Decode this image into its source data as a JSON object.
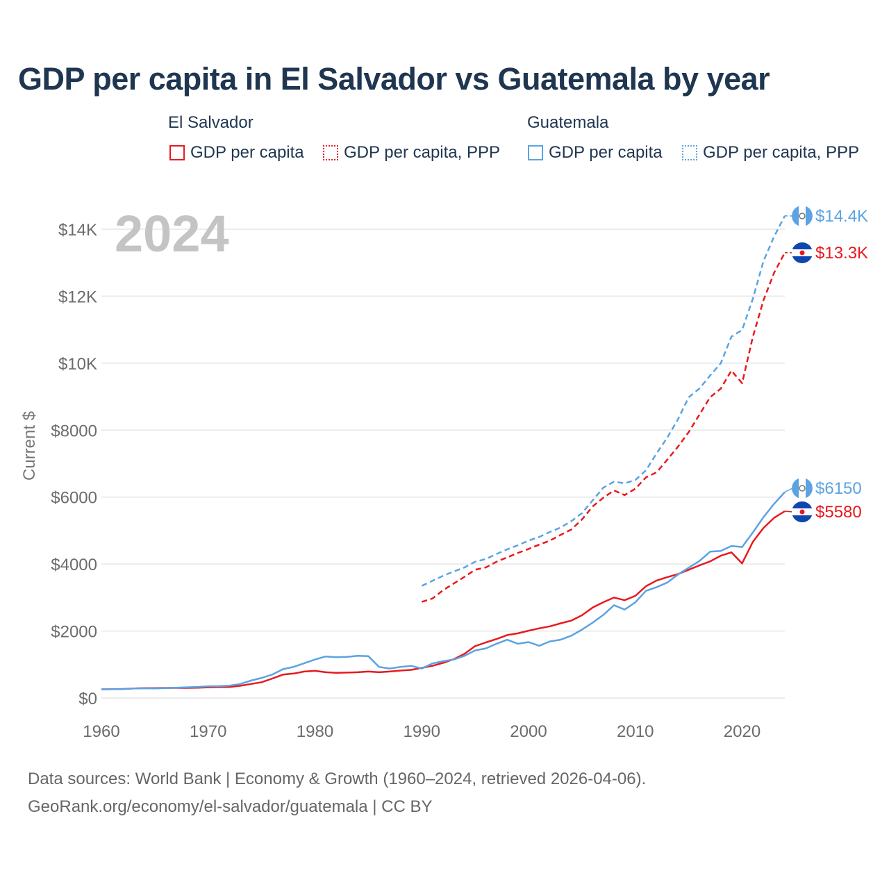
{
  "title": "GDP per capita in El Salvador vs Guatemala by year",
  "legend": {
    "groups": [
      {
        "name": "El Salvador",
        "items": [
          "GDP per capita",
          "GDP per capita, PPP"
        ]
      },
      {
        "name": "Guatemala",
        "items": [
          "GDP per capita",
          "GDP per capita, PPP"
        ]
      }
    ]
  },
  "colors": {
    "el_salvador": "#e8191e",
    "guatemala": "#5ba3e2"
  },
  "source": {
    "line1": "Data sources: World Bank | Economy & Growth (1960–2024, retrieved 2026-04-06).",
    "line2": "GeoRank.org/economy/el-salvador/guatemala | CC BY"
  },
  "chart_data": {
    "type": "line",
    "title": "GDP per capita in El Salvador vs Guatemala by year",
    "year_label": "2024",
    "ylabel": "Current $",
    "xlabel": "",
    "xlim": [
      1960,
      2024
    ],
    "ylim": [
      0,
      14000
    ],
    "xticks": [
      1960,
      1970,
      1980,
      1990,
      2000,
      2010,
      2020
    ],
    "yticks": [
      0,
      2000,
      4000,
      6000,
      8000,
      10000,
      12000,
      14000
    ],
    "ytick_labels": [
      "$0",
      "$2000",
      "$4000",
      "$6000",
      "$8000",
      "$10K",
      "$12K",
      "$14K"
    ],
    "grid": true,
    "series": [
      {
        "name": "El Salvador GDP per capita",
        "country": "El Salvador",
        "style": "solid",
        "color": "#e8191e",
        "end_label": "$5580",
        "x": [
          1960,
          1961,
          1962,
          1963,
          1964,
          1965,
          1966,
          1967,
          1968,
          1969,
          1970,
          1971,
          1972,
          1973,
          1974,
          1975,
          1976,
          1977,
          1978,
          1979,
          1980,
          1981,
          1982,
          1983,
          1984,
          1985,
          1986,
          1987,
          1988,
          1989,
          1990,
          1991,
          1992,
          1993,
          1994,
          1995,
          1996,
          1997,
          1998,
          1999,
          2000,
          2001,
          2002,
          2003,
          2004,
          2005,
          2006,
          2007,
          2008,
          2009,
          2010,
          2011,
          2012,
          2013,
          2014,
          2015,
          2016,
          2017,
          2018,
          2019,
          2020,
          2021,
          2022,
          2023,
          2024
        ],
        "values": [
          260,
          265,
          270,
          285,
          295,
          295,
          300,
          300,
          300,
          305,
          320,
          325,
          330,
          365,
          420,
          470,
          580,
          700,
          730,
          790,
          810,
          770,
          750,
          760,
          770,
          790,
          770,
          790,
          820,
          840,
          900,
          960,
          1050,
          1160,
          1320,
          1550,
          1660,
          1760,
          1880,
          1930,
          2010,
          2080,
          2140,
          2230,
          2310,
          2470,
          2700,
          2860,
          3000,
          2920,
          3050,
          3340,
          3510,
          3610,
          3700,
          3830,
          3960,
          4080,
          4250,
          4350,
          4020,
          4660,
          5080,
          5380,
          5580
        ]
      },
      {
        "name": "El Salvador GDP per capita, PPP",
        "country": "El Salvador",
        "style": "dashed",
        "color": "#e8191e",
        "end_label": "$13.3K",
        "x": [
          1990,
          1991,
          1992,
          1993,
          1994,
          1995,
          1996,
          1997,
          1998,
          1999,
          2000,
          2001,
          2002,
          2003,
          2004,
          2005,
          2006,
          2007,
          2008,
          2009,
          2010,
          2011,
          2012,
          2013,
          2014,
          2015,
          2016,
          2017,
          2018,
          2019,
          2020,
          2021,
          2022,
          2023,
          2024
        ],
        "values": [
          2870,
          2970,
          3220,
          3420,
          3620,
          3830,
          3900,
          4070,
          4200,
          4330,
          4450,
          4580,
          4700,
          4870,
          5030,
          5330,
          5720,
          5980,
          6200,
          6060,
          6250,
          6590,
          6740,
          7120,
          7510,
          7940,
          8460,
          8980,
          9240,
          9780,
          9400,
          10780,
          11880,
          12700,
          13300
        ]
      },
      {
        "name": "Guatemala GDP per capita",
        "country": "Guatemala",
        "style": "solid",
        "color": "#5ba3e2",
        "end_label": "$6150",
        "x": [
          1960,
          1961,
          1962,
          1963,
          1964,
          1965,
          1966,
          1967,
          1968,
          1969,
          1970,
          1971,
          1972,
          1973,
          1974,
          1975,
          1976,
          1977,
          1978,
          1979,
          1980,
          1981,
          1982,
          1983,
          1984,
          1985,
          1986,
          1987,
          1988,
          1989,
          1990,
          1991,
          1992,
          1993,
          1994,
          1995,
          1996,
          1997,
          1998,
          1999,
          2000,
          2001,
          2002,
          2003,
          2004,
          2005,
          2006,
          2007,
          2008,
          2009,
          2010,
          2011,
          2012,
          2013,
          2014,
          2015,
          2016,
          2017,
          2018,
          2019,
          2020,
          2021,
          2022,
          2023,
          2024
        ],
        "values": [
          260,
          262,
          265,
          285,
          290,
          285,
          295,
          305,
          320,
          330,
          350,
          355,
          370,
          420,
          520,
          600,
          700,
          860,
          930,
          1040,
          1150,
          1240,
          1220,
          1230,
          1260,
          1250,
          930,
          880,
          930,
          960,
          880,
          1030,
          1100,
          1150,
          1260,
          1420,
          1480,
          1620,
          1740,
          1620,
          1670,
          1560,
          1690,
          1740,
          1860,
          2040,
          2250,
          2480,
          2770,
          2640,
          2860,
          3200,
          3310,
          3450,
          3690,
          3890,
          4090,
          4370,
          4390,
          4540,
          4510,
          4940,
          5400,
          5800,
          6150
        ]
      },
      {
        "name": "Guatemala GDP per capita, PPP",
        "country": "Guatemala",
        "style": "dashed",
        "color": "#5ba3e2",
        "end_label": "$14.4K",
        "x": [
          1990,
          1991,
          1992,
          1993,
          1994,
          1995,
          1996,
          1997,
          1998,
          1999,
          2000,
          2001,
          2002,
          2003,
          2004,
          2005,
          2006,
          2007,
          2008,
          2009,
          2010,
          2011,
          2012,
          2013,
          2014,
          2015,
          2016,
          2017,
          2018,
          2019,
          2020,
          2021,
          2022,
          2023,
          2024
        ],
        "values": [
          3350,
          3500,
          3650,
          3780,
          3900,
          4070,
          4150,
          4300,
          4440,
          4560,
          4700,
          4810,
          4960,
          5090,
          5280,
          5520,
          5900,
          6280,
          6460,
          6410,
          6510,
          6800,
          7310,
          7780,
          8330,
          8980,
          9240,
          9630,
          10000,
          10790,
          10990,
          11920,
          13050,
          13780,
          14400
        ]
      }
    ]
  }
}
